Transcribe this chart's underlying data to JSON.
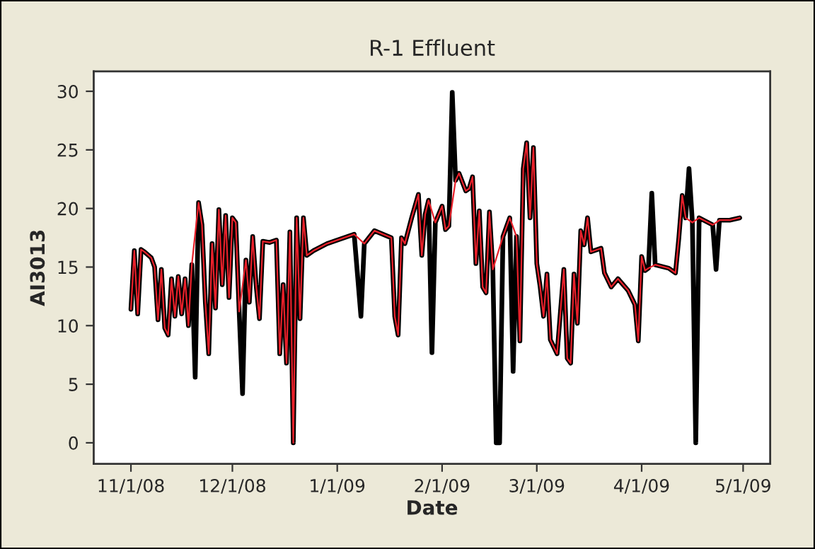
{
  "chart_data": {
    "type": "line",
    "title": "R-1 Effluent",
    "xlabel": "Date",
    "ylabel": "AI3013",
    "xlim": [
      "2008-10-21",
      "2009-05-09"
    ],
    "ylim": [
      -1.8,
      31.7
    ],
    "yticks": [
      0,
      5,
      10,
      15,
      20,
      25,
      30
    ],
    "xticks": [
      {
        "value": "2008-11-01",
        "label": "11/1/08"
      },
      {
        "value": "2008-12-01",
        "label": "12/1/08"
      },
      {
        "value": "2009-01-01",
        "label": "1/1/09"
      },
      {
        "value": "2009-02-01",
        "label": "2/1/09"
      },
      {
        "value": "2009-03-01",
        "label": "3/1/09"
      },
      {
        "value": "2009-04-01",
        "label": "4/1/09"
      },
      {
        "value": "2009-05-01",
        "label": "5/1/09"
      }
    ],
    "grid": false,
    "marker": "none",
    "line_style": "solid",
    "series": [
      {
        "color": "#000000",
        "x": [
          "2008-11-01",
          "2008-11-02",
          "2008-11-03",
          "2008-11-04",
          "2008-11-05",
          "2008-11-07",
          "2008-11-08",
          "2008-11-09",
          "2008-11-10",
          "2008-11-11",
          "2008-11-12",
          "2008-11-13",
          "2008-11-14",
          "2008-11-15",
          "2008-11-16",
          "2008-11-17",
          "2008-11-18",
          "2008-11-19",
          "2008-11-20",
          "2008-11-21",
          "2008-11-22",
          "2008-11-23",
          "2008-11-24",
          "2008-11-25",
          "2008-11-26",
          "2008-11-27",
          "2008-11-28",
          "2008-11-29",
          "2008-11-30",
          "2008-12-01",
          "2008-12-02",
          "2008-12-03",
          "2008-12-04",
          "2008-12-05",
          "2008-12-06",
          "2008-12-07",
          "2008-12-08",
          "2008-12-09",
          "2008-12-10",
          "2008-12-12",
          "2008-12-14",
          "2008-12-15",
          "2008-12-16",
          "2008-12-17",
          "2008-12-18",
          "2008-12-19",
          "2008-12-20",
          "2008-12-21",
          "2008-12-22",
          "2008-12-23",
          "2008-12-25",
          "2008-12-29",
          "2009-01-01",
          "2009-01-06",
          "2009-01-08",
          "2009-01-09",
          "2009-01-12",
          "2009-01-17",
          "2009-01-18",
          "2009-01-19",
          "2009-01-20",
          "2009-01-21",
          "2009-01-23",
          "2009-01-25",
          "2009-01-26",
          "2009-01-27",
          "2009-01-28",
          "2009-01-29",
          "2009-01-30",
          "2009-02-01",
          "2009-02-02",
          "2009-02-03",
          "2009-02-04",
          "2009-02-05",
          "2009-02-06",
          "2009-02-08",
          "2009-02-09",
          "2009-02-10",
          "2009-02-11",
          "2009-02-12",
          "2009-02-13",
          "2009-02-14",
          "2009-02-15",
          "2009-02-16",
          "2009-02-17",
          "2009-02-18",
          "2009-02-19",
          "2009-02-21",
          "2009-02-22",
          "2009-02-23",
          "2009-02-24",
          "2009-02-25",
          "2009-02-26",
          "2009-02-27",
          "2009-02-28",
          "2009-03-01",
          "2009-03-02",
          "2009-03-03",
          "2009-03-04",
          "2009-03-05",
          "2009-03-07",
          "2009-03-09",
          "2009-03-10",
          "2009-03-11",
          "2009-03-12",
          "2009-03-13",
          "2009-03-14",
          "2009-03-15",
          "2009-03-16",
          "2009-03-17",
          "2009-03-20",
          "2009-03-21",
          "2009-03-23",
          "2009-03-25",
          "2009-03-28",
          "2009-03-30",
          "2009-03-31",
          "2009-04-01",
          "2009-04-02",
          "2009-04-03",
          "2009-04-04",
          "2009-04-05",
          "2009-04-09",
          "2009-04-11",
          "2009-04-12",
          "2009-04-13",
          "2009-04-14",
          "2009-04-15",
          "2009-04-16",
          "2009-04-17",
          "2009-04-18",
          "2009-04-22",
          "2009-04-23",
          "2009-04-24",
          "2009-04-27",
          "2009-04-30"
        ],
        "values": [
          11.4,
          16.4,
          11.0,
          16.5,
          16.3,
          15.8,
          15.0,
          10.5,
          14.8,
          9.8,
          9.2,
          14.0,
          10.8,
          14.2,
          11.0,
          14.0,
          10.0,
          15.2,
          5.6,
          20.5,
          18.6,
          12.0,
          7.6,
          17.0,
          11.5,
          19.9,
          13.5,
          19.4,
          12.4,
          19.2,
          18.8,
          11.2,
          4.2,
          15.6,
          12.0,
          17.6,
          13.5,
          10.6,
          17.2,
          17.1,
          17.3,
          7.6,
          13.5,
          6.8,
          18.0,
          0,
          19.2,
          10.6,
          19.2,
          16.0,
          16.4,
          17.0,
          17.3,
          17.8,
          10.8,
          17.0,
          18.1,
          17.5,
          10.8,
          9.2,
          17.5,
          17.0,
          19.2,
          21.2,
          16.0,
          19.5,
          20.7,
          7.7,
          18.8,
          20.2,
          18.2,
          18.5,
          29.9,
          22.4,
          23.0,
          21.5,
          21.7,
          22.7,
          15.3,
          19.8,
          13.3,
          12.8,
          19.7,
          14.8,
          0,
          0,
          17.6,
          19.2,
          6.1,
          17.6,
          8.7,
          23.4,
          25.6,
          19.2,
          25.2,
          15.3,
          13.3,
          10.8,
          14.4,
          8.8,
          7.6,
          14.8,
          7.2,
          6.8,
          14.4,
          10.2,
          18.1,
          16.9,
          19.2,
          16.3,
          16.6,
          14.5,
          13.3,
          14.0,
          13.0,
          11.8,
          8.7,
          15.9,
          14.7,
          14.9,
          21.3,
          15.2,
          14.9,
          14.5,
          17.5,
          21.1,
          19.2,
          23.4,
          18.8,
          0,
          19.2,
          18.6,
          14.8,
          19.0,
          19.0,
          19.2
        ]
      },
      {
        "color": "#e8202a",
        "x": [
          "2008-11-01",
          "2008-11-02",
          "2008-11-03",
          "2008-11-04",
          "2008-11-05",
          "2008-11-07",
          "2008-11-08",
          "2008-11-09",
          "2008-11-10",
          "2008-11-11",
          "2008-11-12",
          "2008-11-13",
          "2008-11-14",
          "2008-11-15",
          "2008-11-16",
          "2008-11-17",
          "2008-11-18",
          "2008-11-19",
          "2008-11-21",
          "2008-11-22",
          "2008-11-23",
          "2008-11-24",
          "2008-11-25",
          "2008-11-26",
          "2008-11-27",
          "2008-11-28",
          "2008-11-29",
          "2008-11-30",
          "2008-12-01",
          "2008-12-02",
          "2008-12-03",
          "2008-12-05",
          "2008-12-06",
          "2008-12-07",
          "2008-12-08",
          "2008-12-09",
          "2008-12-10",
          "2008-12-12",
          "2008-12-14",
          "2008-12-15",
          "2008-12-16",
          "2008-12-17",
          "2008-12-18",
          "2008-12-19",
          "2008-12-20",
          "2008-12-21",
          "2008-12-22",
          "2008-12-23",
          "2008-12-25",
          "2008-12-29",
          "2009-01-01",
          "2009-01-06",
          "2009-01-09",
          "2009-01-12",
          "2009-01-17",
          "2009-01-18",
          "2009-01-19",
          "2009-01-20",
          "2009-01-21",
          "2009-01-23",
          "2009-01-25",
          "2009-01-26",
          "2009-01-27",
          "2009-01-28",
          "2009-01-30",
          "2009-02-01",
          "2009-02-02",
          "2009-02-03",
          "2009-02-05",
          "2009-02-06",
          "2009-02-08",
          "2009-02-09",
          "2009-02-10",
          "2009-02-11",
          "2009-02-12",
          "2009-02-13",
          "2009-02-14",
          "2009-02-15",
          "2009-02-16",
          "2009-02-19",
          "2009-02-21",
          "2009-02-23",
          "2009-02-24",
          "2009-02-25",
          "2009-02-26",
          "2009-02-27",
          "2009-02-28",
          "2009-03-01",
          "2009-03-02",
          "2009-03-03",
          "2009-03-04",
          "2009-03-05",
          "2009-03-07",
          "2009-03-09",
          "2009-03-10",
          "2009-03-11",
          "2009-03-12",
          "2009-03-13",
          "2009-03-14",
          "2009-03-15",
          "2009-03-16",
          "2009-03-17",
          "2009-03-20",
          "2009-03-21",
          "2009-03-23",
          "2009-03-25",
          "2009-03-28",
          "2009-03-30",
          "2009-03-31",
          "2009-04-01",
          "2009-04-02",
          "2009-04-03",
          "2009-04-05",
          "2009-04-09",
          "2009-04-11",
          "2009-04-12",
          "2009-04-13",
          "2009-04-14",
          "2009-04-16",
          "2009-04-18",
          "2009-04-22",
          "2009-04-24",
          "2009-04-27",
          "2009-04-30"
        ],
        "values": [
          11.4,
          16.4,
          11.0,
          16.5,
          16.3,
          15.8,
          15.0,
          10.5,
          14.8,
          9.8,
          9.2,
          14.0,
          10.8,
          14.2,
          11.0,
          14.0,
          10.0,
          15.2,
          20.5,
          18.6,
          12.0,
          7.6,
          17.0,
          11.5,
          19.9,
          13.5,
          19.4,
          12.4,
          19.2,
          18.8,
          11.2,
          15.6,
          12.0,
          17.6,
          13.5,
          10.6,
          17.2,
          17.1,
          17.3,
          7.6,
          13.5,
          6.8,
          18.0,
          0,
          19.2,
          10.6,
          19.2,
          16.0,
          16.4,
          17.0,
          17.3,
          17.8,
          17.0,
          18.1,
          17.5,
          10.8,
          9.2,
          17.5,
          17.0,
          19.2,
          21.2,
          16.0,
          19.5,
          20.7,
          18.8,
          20.2,
          18.2,
          18.5,
          22.4,
          23.0,
          21.5,
          21.7,
          22.7,
          15.3,
          19.8,
          13.3,
          12.8,
          19.7,
          14.8,
          17.6,
          19.2,
          17.6,
          8.7,
          23.4,
          25.6,
          19.2,
          25.2,
          15.3,
          13.3,
          10.8,
          14.4,
          8.8,
          7.6,
          14.8,
          7.2,
          6.8,
          14.4,
          10.2,
          18.1,
          16.9,
          19.2,
          16.3,
          16.6,
          14.5,
          13.3,
          14.0,
          13.0,
          11.8,
          8.7,
          15.9,
          14.7,
          14.9,
          15.2,
          14.9,
          14.5,
          17.5,
          21.1,
          19.2,
          18.8,
          19.2,
          18.6,
          19.0,
          19.0,
          19.2
        ]
      }
    ]
  }
}
